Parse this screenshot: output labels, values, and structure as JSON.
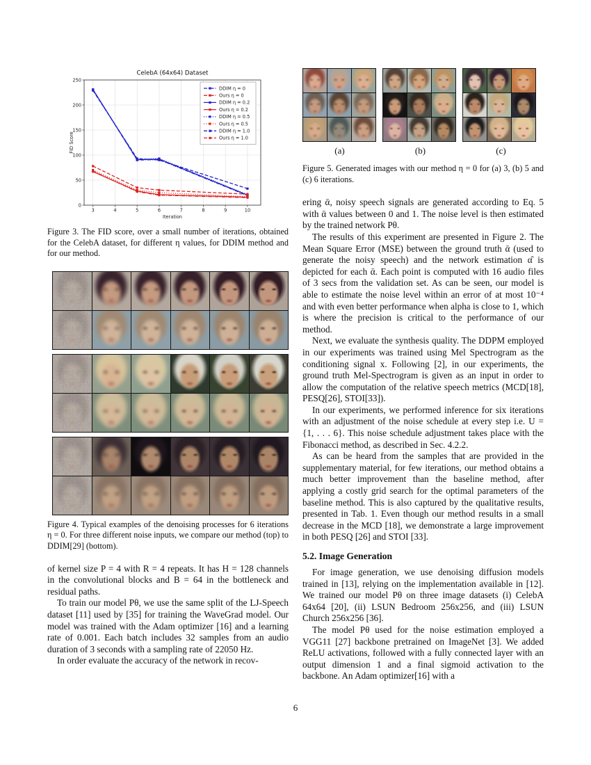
{
  "page": {
    "number": "6"
  },
  "chart_data": {
    "type": "line",
    "title": "CelebA (64x64) Dataset",
    "xlabel": "Iteration",
    "ylabel": "FID Score",
    "x": [
      3,
      5,
      6,
      10
    ],
    "xticks": [
      3,
      4,
      5,
      6,
      7,
      8,
      9,
      10
    ],
    "yticks": [
      0,
      50,
      100,
      150,
      200,
      250
    ],
    "xlim": [
      2.6,
      10.6
    ],
    "ylim": [
      0,
      250
    ],
    "grid": true,
    "legend_position": "upper right",
    "colors": {
      "ddim": "#2222cc",
      "ours": "#dd2222"
    },
    "series": [
      {
        "name": "DDIM η = 0",
        "color": "#2222cc",
        "style": "dashdot",
        "values": [
          231,
          90,
          91,
          19
        ]
      },
      {
        "name": "Ours η = 0",
        "color": "#dd2222",
        "style": "dashdot",
        "values": [
          68,
          27,
          20,
          15
        ]
      },
      {
        "name": "DDIM η = 0.2",
        "color": "#2222cc",
        "style": "solid",
        "values": [
          231,
          91,
          92,
          20
        ]
      },
      {
        "name": "Ours η = 0.2",
        "color": "#dd2222",
        "style": "solid",
        "values": [
          67,
          28,
          21,
          16
        ]
      },
      {
        "name": "DDIM η = 0.5",
        "color": "#2222cc",
        "style": "dotted",
        "values": [
          230,
          92,
          93,
          21
        ]
      },
      {
        "name": "Ours η = 0.5",
        "color": "#dd2222",
        "style": "dotted",
        "values": [
          70,
          30,
          25,
          17
        ]
      },
      {
        "name": "DDIM η = 1.0",
        "color": "#2222cc",
        "style": "dashed",
        "values": [
          229,
          93,
          90,
          33
        ]
      },
      {
        "name": "Ours η = 1.0",
        "color": "#dd2222",
        "style": "dashed",
        "values": [
          78,
          35,
          30,
          22
        ]
      }
    ]
  },
  "figure3": {
    "caption": "Figure 3. The FID score, over a small number of iterations, obtained for the CelebA dataset, for different η values, for DDIM method and for our method."
  },
  "figure4": {
    "caption": "Figure 4. Typical examples of the denoising processes for 6 iterations η = 0. For three different noise inputs, we compare our method (top) to DDIM[29] (bottom).",
    "groups": [
      {
        "rows": [
          {
            "method": "ours",
            "blurs": [
              2.2,
              1.5,
              1.0,
              0.6,
              0.3
            ],
            "faces": [
              [
                "#38222c",
                "#c49a80",
                "#b4a89e"
              ],
              [
                "#38222c",
                "#c49a80",
                "#b4a89e"
              ],
              [
                "#36202a",
                "#c3987e",
                "#b2a69c"
              ],
              [
                "#341e28",
                "#c2977d",
                "#b0a49a"
              ],
              [
                "#321c26",
                "#c1967c",
                "#aea298"
              ]
            ]
          },
          {
            "method": "ddim",
            "blurs": [
              2.4,
              1.9,
              1.5,
              1.2,
              1.0
            ],
            "faces": [
              [
                "#a08a74",
                "#d0b49a",
                "#8fa0a8"
              ],
              [
                "#a08a74",
                "#d0b49a",
                "#8fa0a8"
              ],
              [
                "#9e8872",
                "#cfb298",
                "#8d9ea6"
              ],
              [
                "#9c8670",
                "#ceb096",
                "#8b9ca4"
              ],
              [
                "#9a846e",
                "#cdae94",
                "#899aa2"
              ]
            ]
          }
        ]
      },
      {
        "rows": [
          {
            "method": "ours",
            "blurs": [
              2.2,
              1.8,
              1.1,
              0.8,
              0.5
            ],
            "faces": [
              [
                "#d8c49c",
                "#d8b493",
                "#95a08e"
              ],
              [
                "#d8c8a2",
                "#dcc3a2",
                "#90a090"
              ],
              [
                "#d8d4c8",
                "#c79d78",
                "#2e3a2e"
              ],
              [
                "#d0d0c6",
                "#c89d78",
                "#37432f"
              ],
              [
                "#d6d6cc",
                "#c9a07c",
                "#3c3c34"
              ]
            ]
          },
          {
            "method": "ddim",
            "blurs": [
              2.4,
              2.0,
              1.7,
              1.5,
              1.3
            ],
            "faces": [
              [
                "#cdbd9a",
                "#d4b898",
                "#7f8f7d"
              ],
              [
                "#cdbd9a",
                "#d4b898",
                "#7f8f7d"
              ],
              [
                "#cbbb98",
                "#d3b696",
                "#7d8d7b"
              ],
              [
                "#c9b996",
                "#d2b494",
                "#7b8b79"
              ],
              [
                "#c7b794",
                "#d1b292",
                "#798977"
              ]
            ]
          }
        ]
      },
      {
        "rows": [
          {
            "method": "ours",
            "blurs": [
              2.0,
              1.2,
              0.9,
              0.7,
              0.4
            ],
            "faces": [
              [
                "#3c3034",
                "#a8846a",
                "#6b5f58"
              ],
              [
                "#1e161c",
                "#b08a6e",
                "#0f0d10"
              ],
              [
                "#2a2026",
                "#ad8668",
                "#403438"
              ],
              [
                "#241c22",
                "#b08868",
                "#3a3036"
              ],
              [
                "#201820",
                "#aa8466",
                "#322a30"
              ]
            ]
          },
          {
            "method": "ddim",
            "blurs": [
              2.4,
              2.1,
              1.8,
              1.6,
              1.4
            ],
            "faces": [
              [
                "#8a7464",
                "#c0a184",
                "#9c8b7c"
              ],
              [
                "#8a7464",
                "#c0a184",
                "#9c8b7c"
              ],
              [
                "#887262",
                "#bf9f82",
                "#9a897a"
              ],
              [
                "#867060",
                "#be9d80",
                "#988778"
              ],
              [
                "#846e5e",
                "#bd9b7e",
                "#968576"
              ]
            ]
          }
        ]
      }
    ],
    "noise_face_tint": [
      "#5a4a44",
      "#b49a88",
      "#a89a90"
    ]
  },
  "figure5": {
    "caption": "Figure 5. Generated images with our method η = 0 for (a) 3, (b) 5 and (c) 6 iterations.",
    "labels": [
      "(a)",
      "(b)",
      "(c)"
    ],
    "blocks": [
      {
        "label": "(a)",
        "blur": 1.1,
        "faces": [
          [
            "#8f4b3e",
            "#daa98e",
            "#b2a49c"
          ],
          [
            "#b4a494",
            "#cfa287",
            "#96a4b2"
          ],
          [
            "#c8a57a",
            "#dcb093",
            "#9aa49a"
          ],
          [
            "#6e6054",
            "#c39a80",
            "#94a2b0"
          ],
          [
            "#5a4636",
            "#bb8e6d",
            "#8ea0ac"
          ],
          [
            "#7c6a58",
            "#c49a7c",
            "#a0a49e"
          ],
          [
            "#c0a074",
            "#d6ac8c",
            "#ac9a84"
          ],
          [
            "#4e5a56",
            "#93897a",
            "#90948e"
          ],
          [
            "#6e4f3e",
            "#cc9f82",
            "#b4aca2"
          ]
        ]
      },
      {
        "label": "(b)",
        "blur": 0.7,
        "faces": [
          [
            "#564238",
            "#cfa584",
            "#9aa49c"
          ],
          [
            "#8a684a",
            "#d4a47c",
            "#b2bab2"
          ],
          [
            "#bb9464",
            "#d4ad8d",
            "#8ea096"
          ],
          [
            "#241c1a",
            "#c99b79",
            "#141414"
          ],
          [
            "#342a22",
            "#aa7d5c",
            "#4a524a"
          ],
          [
            "#c9b089",
            "#dcae8d",
            "#7e8e80"
          ],
          [
            "#a87f8c",
            "#dcb4a2",
            "#8e7a80"
          ],
          [
            "#443a32",
            "#c3a284",
            "#a2aaa2"
          ],
          [
            "#322a22",
            "#b38a62",
            "#6a6a62"
          ]
        ]
      },
      {
        "label": "(c)",
        "blur": 0.5,
        "faces": [
          [
            "#3a2a32",
            "#e2c2b2",
            "#4a604a"
          ],
          [
            "#322230",
            "#c99a7a",
            "#6a7258"
          ],
          [
            "#cf8a4c",
            "#e2aa82",
            "#c4784a"
          ],
          [
            "#2a221c",
            "#bb8a6a",
            "#d6d6ce"
          ],
          [
            "#c2aa7c",
            "#dab497",
            "#b2baa9"
          ],
          [
            "#1c161c",
            "#aa8a6a",
            "#2c2c34"
          ],
          [
            "#1e1e1e",
            "#c39272",
            "#92928c"
          ],
          [
            "#d2b288",
            "#e2ba9a",
            "#7c6c5a"
          ],
          [
            "#e2ca9a",
            "#eac2a2",
            "#b2aa92"
          ]
        ]
      }
    ]
  },
  "left_column": {
    "blocks": [
      {
        "type": "p",
        "indent": false,
        "text": "of kernel size P = 4 with R = 4 repeats. It has H = 128 channels in the convolutional blocks and B = 64 in the bottleneck and residual paths."
      },
      {
        "type": "p",
        "indent": true,
        "text": "To train our model Pθ, we use the same split of the LJ-Speech dataset [11] used by [35] for training the WaveGrad model. Our model was trained with the Adam optimizer [16] and a learning rate of 0.001. Each batch includes 32 samples from an audio duration of 3 seconds with a sampling rate of 22050 Hz."
      },
      {
        "type": "p",
        "indent": true,
        "text": "In order evaluate the accuracy of the network in recov-"
      }
    ]
  },
  "right_column": {
    "blocks": [
      {
        "type": "p",
        "indent": false,
        "text": "ering ᾱ, noisy speech signals are generated according to Eq. 5 with ᾱ values between 0 and 1. The noise level is then estimated by the trained network Pθ."
      },
      {
        "type": "p",
        "indent": true,
        "text": "The results of this experiment are presented in Figure 2. The Mean Square Error (MSE) between the ground truth ᾱ (used to generate the noisy speech) and the network estimation α̂ is depicted for each ᾱ. Each point is computed with 16 audio files of 3 secs from the validation set. As can be seen, our model is able to estimate the noise level within an error of at most 10⁻⁴ and with even better performance when alpha is close to 1, which is where the precision is critical to the performance of our method."
      },
      {
        "type": "p",
        "indent": true,
        "text": "Next, we evaluate the synthesis quality. The DDPM employed in our experiments was trained using Mel Spectrogram as the conditioning signal x. Following [2], in our experiments, the ground truth Mel-Spectrogram is given as an input in order to allow the computation of the relative speech metrics (MCD[18], PESQ[26], STOI[33])."
      },
      {
        "type": "p",
        "indent": true,
        "text": "In our experiments, we performed inference for six iterations with an adjustment of the noise schedule at every step i.e. U = {1, . . . 6}. This noise schedule adjustment takes place with the Fibonacci method, as described in Sec. 4.2.2."
      },
      {
        "type": "p",
        "indent": true,
        "text": "As can be heard from the samples that are provided in the supplementary material, for few iterations, our method obtains a much better improvement than the baseline method, after applying a costly grid search for the optimal parameters of the baseline method. This is also captured by the qualitative results, presented in Tab. 1. Even though our method results in a small decrease in the MCD [18], we demonstrate a large improvement in both PESQ [26] and STOI [33]."
      },
      {
        "type": "h",
        "text": "5.2. Image Generation"
      },
      {
        "type": "p",
        "indent": true,
        "text": "For image generation, we use denoising diffusion models trained in [13], relying on the implementation available in [12]. We trained our model Pθ on three image datasets (i) CelebA 64x64 [20], (ii) LSUN Bedroom 256x256, and (iii) LSUN Church 256x256 [36]."
      },
      {
        "type": "p",
        "indent": true,
        "text": "The model Pθ used for the noise estimation employed a VGG11 [27] backbone pretrained on ImageNet [3]. We added ReLU activations, followed with a fully connected layer with an output dimension 1 and a final sigmoid activation to the backbone. An Adam optimizer[16] with a"
      }
    ]
  }
}
